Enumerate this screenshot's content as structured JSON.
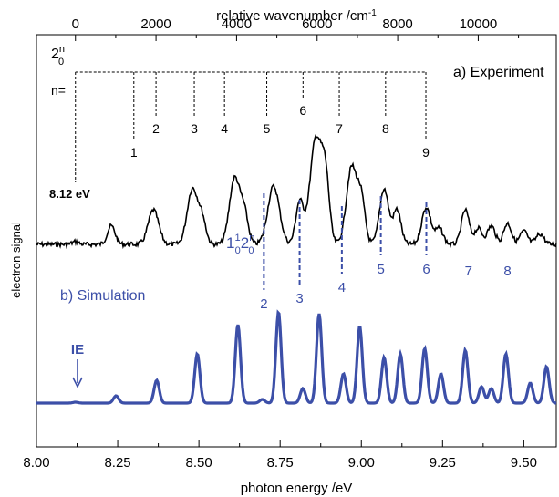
{
  "chart_data": {
    "type": "line",
    "xlabel": "photon energy /eV",
    "x2label_text": "relative wavenumber /cm",
    "x2label_sup": "-1",
    "ylabel": "electron signal",
    "xlim": [
      8.0,
      9.6
    ],
    "xticks": [
      "8.00",
      "8.25",
      "8.50",
      "8.75",
      "9.00",
      "9.25",
      "9.50"
    ],
    "x2ticks": [
      "0",
      "2000",
      "4000",
      "6000",
      "8000",
      "10000"
    ],
    "x2_origin_ev": 8.12,
    "x2_ev_per_cm": 0.00012398,
    "colors": {
      "experiment": "#000000",
      "simulation": "#3c4fa8",
      "text": "#000000"
    },
    "panel_a": {
      "label": "a) Experiment",
      "origin_label": "8.12 eV",
      "progression_label": "2",
      "progression_sup": "n",
      "progression_sub": "0",
      "n_label": "n=",
      "comb_numbers": [
        "1",
        "2",
        "3",
        "4",
        "5",
        "6",
        "7",
        "8",
        "9"
      ],
      "comb_x_cm": [
        1450,
        2000,
        2950,
        3700,
        4750,
        5650,
        6550,
        7700,
        8700
      ],
      "comb_tick_level": [
        "low",
        "mid",
        "mid",
        "mid",
        "mid",
        "high",
        "mid",
        "mid",
        "low"
      ]
    },
    "panel_b": {
      "label": "b) Simulation",
      "ie_label": "IE",
      "ie_x": 8.12
    },
    "combination_band": {
      "label_main": "1",
      "label_sup1": "1",
      "label_sub1": "0",
      "label_main2": "2",
      "label_sup2": "n",
      "label_sub2": "0",
      "markers_n": [
        "2",
        "3",
        "4",
        "5",
        "6",
        "7",
        "8"
      ],
      "markers_x": [
        8.7,
        8.81,
        8.94,
        9.06,
        9.2,
        9.33,
        9.45
      ],
      "dashed_up_to_n": 6
    },
    "series": [
      {
        "name": "a) Experiment",
        "peaks": [
          {
            "x": 8.12,
            "h": 0.02,
            "w": 0.01
          },
          {
            "x": 8.23,
            "h": 0.14,
            "w": 0.012
          },
          {
            "x": 8.36,
            "h": 0.26,
            "w": 0.016
          },
          {
            "x": 8.48,
            "h": 0.42,
            "w": 0.016
          },
          {
            "x": 8.51,
            "h": 0.18,
            "w": 0.012
          },
          {
            "x": 8.61,
            "h": 0.5,
            "w": 0.016
          },
          {
            "x": 8.64,
            "h": 0.22,
            "w": 0.012
          },
          {
            "x": 8.73,
            "h": 0.44,
            "w": 0.018
          },
          {
            "x": 8.81,
            "h": 0.32,
            "w": 0.012
          },
          {
            "x": 8.86,
            "h": 0.8,
            "w": 0.018
          },
          {
            "x": 8.89,
            "h": 0.45,
            "w": 0.012
          },
          {
            "x": 8.97,
            "h": 0.58,
            "w": 0.016
          },
          {
            "x": 9.0,
            "h": 0.32,
            "w": 0.012
          },
          {
            "x": 9.07,
            "h": 0.42,
            "w": 0.014
          },
          {
            "x": 9.11,
            "h": 0.26,
            "w": 0.012
          },
          {
            "x": 9.2,
            "h": 0.28,
            "w": 0.014
          },
          {
            "x": 9.24,
            "h": 0.12,
            "w": 0.012
          },
          {
            "x": 9.32,
            "h": 0.26,
            "w": 0.012
          },
          {
            "x": 9.36,
            "h": 0.12,
            "w": 0.012
          },
          {
            "x": 9.4,
            "h": 0.14,
            "w": 0.012
          },
          {
            "x": 9.45,
            "h": 0.16,
            "w": 0.012
          },
          {
            "x": 9.5,
            "h": 0.1,
            "w": 0.012
          },
          {
            "x": 9.55,
            "h": 0.08,
            "w": 0.012
          }
        ]
      },
      {
        "name": "b) Simulation",
        "peaks": [
          {
            "x": 8.12,
            "h": 0.01,
            "w": 0.008
          },
          {
            "x": 8.245,
            "h": 0.08,
            "w": 0.008
          },
          {
            "x": 8.37,
            "h": 0.25,
            "w": 0.008
          },
          {
            "x": 8.495,
            "h": 0.54,
            "w": 0.008
          },
          {
            "x": 8.62,
            "h": 0.86,
            "w": 0.008
          },
          {
            "x": 8.695,
            "h": 0.04,
            "w": 0.008
          },
          {
            "x": 8.745,
            "h": 1.0,
            "w": 0.008
          },
          {
            "x": 8.82,
            "h": 0.16,
            "w": 0.008
          },
          {
            "x": 8.87,
            "h": 0.98,
            "w": 0.008
          },
          {
            "x": 8.945,
            "h": 0.32,
            "w": 0.008
          },
          {
            "x": 8.995,
            "h": 0.84,
            "w": 0.008
          },
          {
            "x": 9.07,
            "h": 0.5,
            "w": 0.008
          },
          {
            "x": 9.12,
            "h": 0.54,
            "w": 0.008
          },
          {
            "x": 9.195,
            "h": 0.6,
            "w": 0.008
          },
          {
            "x": 9.245,
            "h": 0.32,
            "w": 0.008
          },
          {
            "x": 9.32,
            "h": 0.58,
            "w": 0.008
          },
          {
            "x": 9.37,
            "h": 0.18,
            "w": 0.008
          },
          {
            "x": 9.4,
            "h": 0.16,
            "w": 0.008
          },
          {
            "x": 9.445,
            "h": 0.54,
            "w": 0.008
          },
          {
            "x": 9.52,
            "h": 0.22,
            "w": 0.008
          },
          {
            "x": 9.57,
            "h": 0.4,
            "w": 0.008
          }
        ]
      }
    ]
  }
}
